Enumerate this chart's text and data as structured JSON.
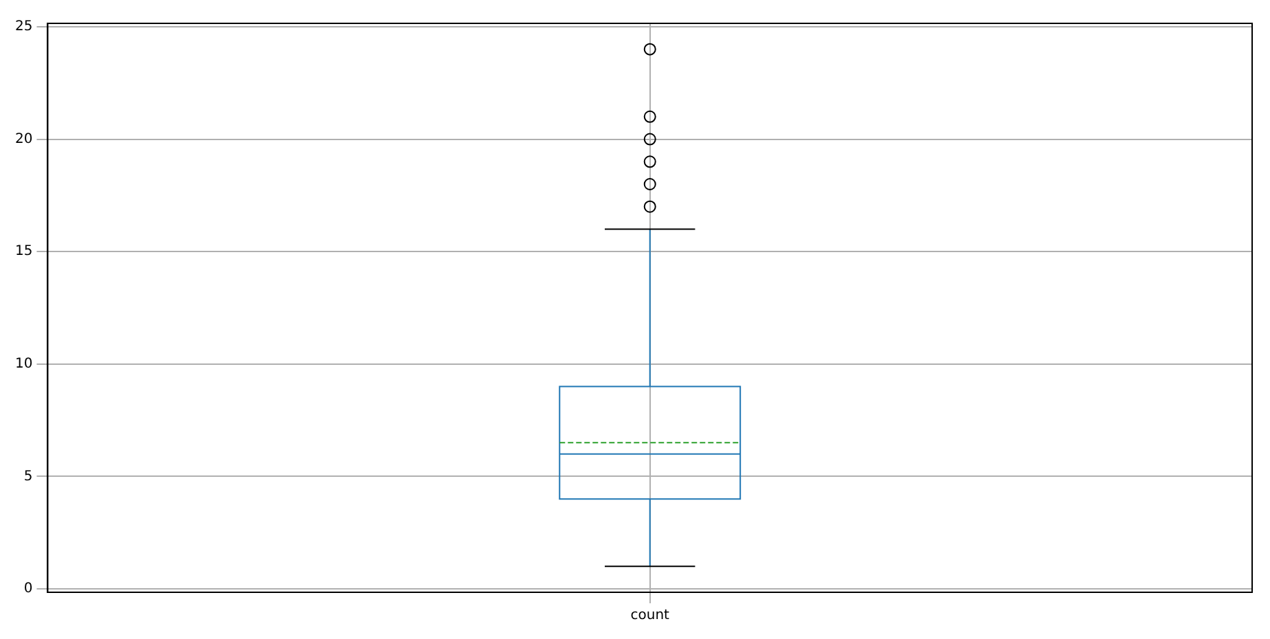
{
  "chart_data": {
    "type": "box",
    "categories": [
      "count"
    ],
    "boxes": [
      {
        "low": 1,
        "q1": 4,
        "median": 6,
        "q3": 9,
        "high": 16,
        "mean": 6.5,
        "outliers": [
          17,
          18,
          19,
          20,
          21,
          24
        ]
      }
    ],
    "color": "#1f77b4",
    "ylim": [
      -0.15,
      25.15
    ],
    "yticks": [
      0,
      5,
      10,
      15,
      20,
      25
    ],
    "grid": true,
    "marker": "circle"
  }
}
